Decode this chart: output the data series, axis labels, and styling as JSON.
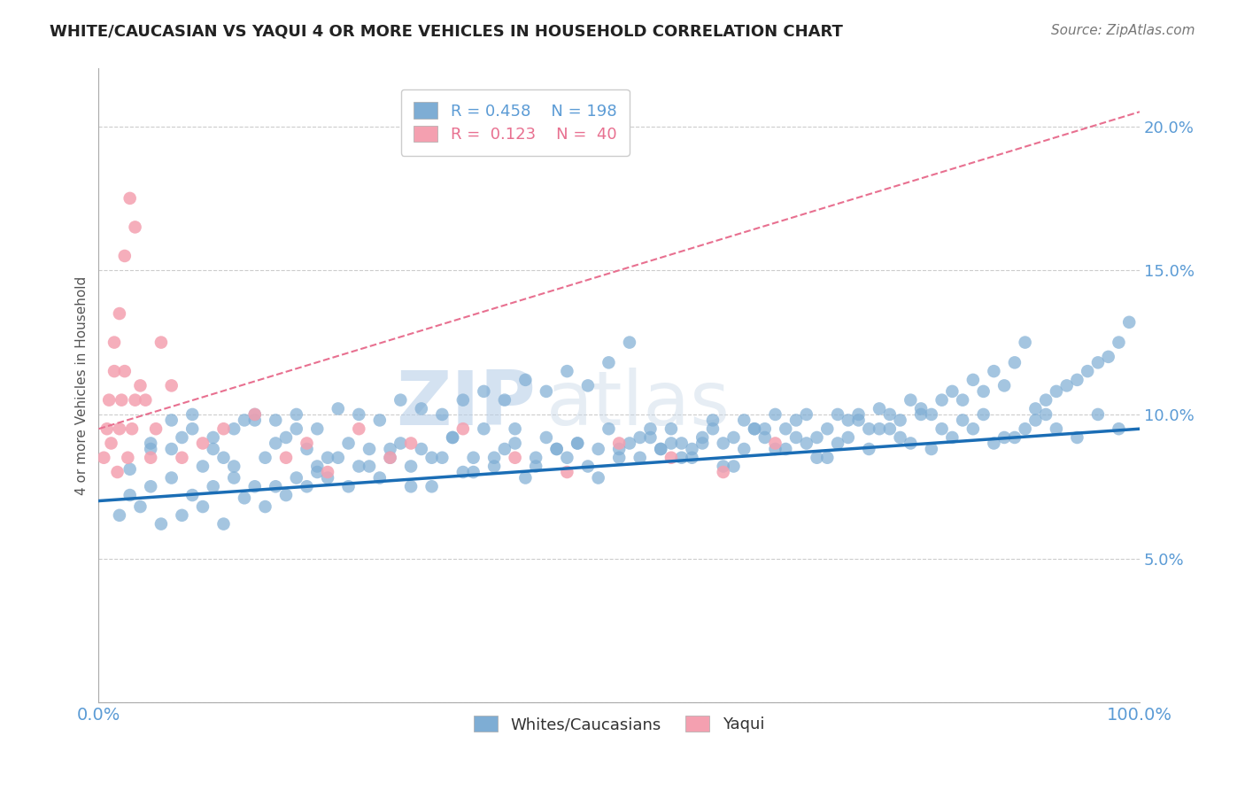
{
  "title": "WHITE/CAUCASIAN VS YAQUI 4 OR MORE VEHICLES IN HOUSEHOLD CORRELATION CHART",
  "source": "Source: ZipAtlas.com",
  "ylabel": "4 or more Vehicles in Household",
  "legend_blue_r": "0.458",
  "legend_blue_n": "198",
  "legend_pink_r": "0.123",
  "legend_pink_n": "40",
  "legend_blue_label": "Whites/Caucasians",
  "legend_pink_label": "Yaqui",
  "blue_color": "#7eadd4",
  "pink_color": "#f4a0b0",
  "blue_line_color": "#1a6db5",
  "pink_line_color": "#e87090",
  "title_color": "#222222",
  "axis_label_color": "#5b9bd5",
  "watermark_zip": "ZIP",
  "watermark_atlas": "atlas",
  "xlim": [
    0.0,
    100.0
  ],
  "ylim": [
    0.0,
    22.0
  ],
  "blue_x": [
    2,
    3,
    4,
    5,
    6,
    7,
    8,
    9,
    10,
    11,
    12,
    13,
    14,
    15,
    16,
    17,
    18,
    19,
    20,
    21,
    22,
    23,
    24,
    25,
    26,
    27,
    28,
    29,
    30,
    31,
    32,
    33,
    34,
    35,
    36,
    37,
    38,
    39,
    40,
    41,
    42,
    43,
    44,
    45,
    46,
    47,
    48,
    49,
    50,
    51,
    52,
    53,
    54,
    55,
    56,
    57,
    58,
    59,
    60,
    61,
    62,
    63,
    64,
    65,
    66,
    67,
    68,
    69,
    70,
    71,
    72,
    73,
    74,
    75,
    76,
    77,
    78,
    79,
    80,
    81,
    82,
    83,
    84,
    85,
    86,
    87,
    88,
    89,
    90,
    91,
    92,
    93,
    94,
    95,
    96,
    97,
    98,
    99,
    3,
    5,
    7,
    9,
    11,
    13,
    15,
    17,
    19,
    21,
    5,
    8,
    10,
    12,
    14,
    16,
    18,
    20,
    22,
    24,
    26,
    28,
    30,
    32,
    34,
    36,
    38,
    40,
    42,
    44,
    46,
    48,
    50,
    52,
    54,
    56,
    58,
    60,
    62,
    64,
    66,
    68,
    70,
    72,
    74,
    76,
    78,
    80,
    82,
    84,
    86,
    88,
    90,
    92,
    94,
    96,
    98,
    7,
    9,
    11,
    13,
    15,
    17,
    19,
    21,
    23,
    25,
    27,
    29,
    31,
    33,
    35,
    37,
    39,
    41,
    43,
    45,
    47,
    49,
    51,
    53,
    55,
    57,
    59,
    61,
    63,
    65,
    67,
    69,
    71,
    73,
    75,
    77,
    79,
    81,
    83,
    85,
    87,
    89,
    91
  ],
  "blue_y": [
    6.5,
    7.2,
    6.8,
    7.5,
    6.2,
    7.8,
    6.5,
    7.2,
    6.8,
    7.5,
    6.2,
    7.8,
    7.1,
    7.5,
    6.8,
    7.5,
    7.2,
    7.8,
    7.5,
    8.0,
    7.8,
    8.5,
    7.5,
    8.2,
    8.8,
    7.8,
    8.5,
    9.0,
    8.2,
    8.8,
    7.5,
    8.5,
    9.2,
    8.0,
    8.5,
    9.5,
    8.2,
    8.8,
    9.0,
    7.8,
    8.5,
    9.2,
    8.8,
    8.5,
    9.0,
    8.2,
    8.8,
    9.5,
    8.8,
    9.0,
    8.5,
    9.2,
    8.8,
    9.5,
    9.0,
    8.8,
    9.2,
    9.5,
    9.0,
    9.2,
    9.8,
    9.5,
    9.2,
    10.0,
    9.5,
    9.8,
    10.0,
    9.2,
    9.5,
    10.0,
    9.8,
    10.0,
    9.5,
    10.2,
    10.0,
    9.8,
    10.5,
    10.2,
    10.0,
    10.5,
    10.8,
    10.5,
    11.2,
    10.8,
    11.5,
    11.0,
    11.8,
    12.5,
    10.2,
    10.5,
    10.8,
    11.0,
    11.2,
    11.5,
    11.8,
    12.0,
    12.5,
    13.2,
    8.1,
    9.0,
    8.8,
    9.5,
    8.8,
    8.2,
    9.8,
    9.0,
    9.5,
    8.2,
    8.8,
    9.2,
    8.2,
    8.5,
    9.8,
    8.5,
    9.2,
    8.8,
    8.5,
    9.0,
    8.2,
    8.8,
    7.5,
    8.5,
    9.2,
    8.0,
    8.5,
    9.5,
    8.2,
    8.8,
    9.0,
    7.8,
    8.5,
    9.2,
    8.8,
    8.5,
    9.0,
    8.2,
    8.8,
    9.5,
    8.8,
    9.0,
    8.5,
    9.2,
    8.8,
    9.5,
    9.0,
    8.8,
    9.2,
    9.5,
    9.0,
    9.2,
    9.8,
    9.5,
    9.2,
    10.0,
    9.5,
    9.8,
    10.0,
    9.2,
    9.5,
    10.0,
    9.8,
    10.0,
    9.5,
    10.2,
    10.0,
    9.8,
    10.5,
    10.2,
    10.0,
    10.5,
    10.8,
    10.5,
    11.2,
    10.8,
    11.5,
    11.0,
    11.8,
    12.5,
    9.5,
    9.0,
    8.5,
    9.8,
    8.2,
    9.5,
    8.8,
    9.2,
    8.5,
    9.0,
    9.8,
    9.5,
    9.2,
    10.0,
    9.5,
    9.8,
    10.0,
    9.2,
    9.5,
    10.0
  ],
  "pink_x": [
    0.5,
    0.8,
    1.0,
    1.2,
    1.5,
    1.5,
    1.8,
    2.0,
    2.0,
    2.2,
    2.5,
    2.5,
    2.8,
    3.0,
    3.2,
    3.5,
    3.5,
    4.0,
    4.5,
    5.0,
    5.5,
    6.0,
    7.0,
    8.0,
    10.0,
    12.0,
    15.0,
    18.0,
    20.0,
    22.0,
    25.0,
    28.0,
    30.0,
    35.0,
    40.0,
    45.0,
    50.0,
    55.0,
    60.0,
    65.0
  ],
  "pink_y": [
    8.5,
    9.5,
    10.5,
    9.0,
    12.5,
    11.5,
    8.0,
    9.5,
    13.5,
    10.5,
    11.5,
    15.5,
    8.5,
    17.5,
    9.5,
    16.5,
    10.5,
    11.0,
    10.5,
    8.5,
    9.5,
    12.5,
    11.0,
    8.5,
    9.0,
    9.5,
    10.0,
    8.5,
    9.0,
    8.0,
    9.5,
    8.5,
    9.0,
    9.5,
    8.5,
    8.0,
    9.0,
    8.5,
    8.0,
    9.0
  ],
  "blue_line_x": [
    0,
    100
  ],
  "blue_line_y": [
    7.0,
    9.5
  ],
  "pink_line_x": [
    0,
    100
  ],
  "pink_line_y": [
    9.5,
    20.5
  ]
}
